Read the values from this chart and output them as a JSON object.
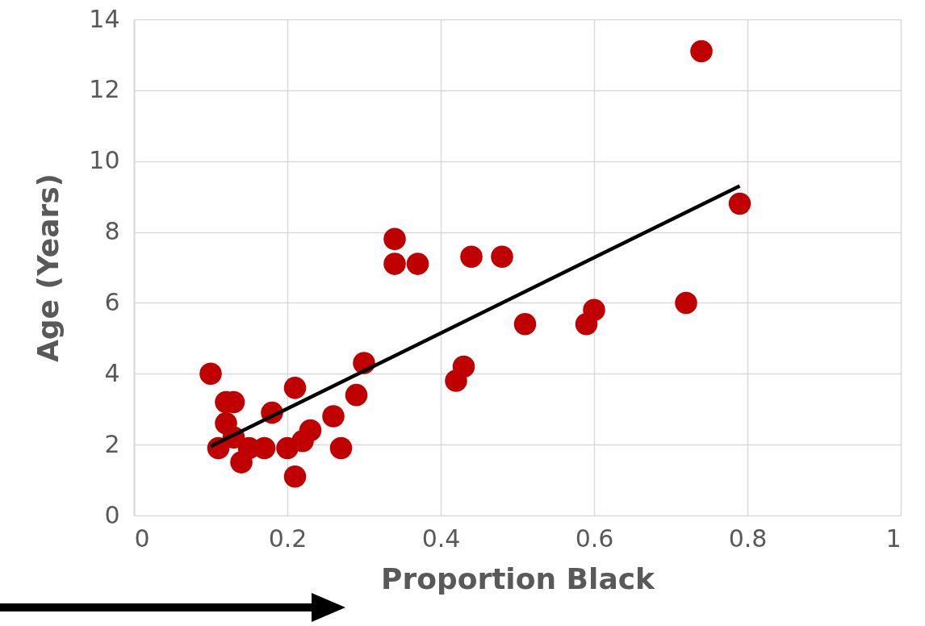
{
  "chart_data": {
    "type": "scatter",
    "xlabel": "Proportion Black",
    "ylabel": "Age (Years)",
    "xlim": [
      0,
      1
    ],
    "xticks": [
      0,
      0.2,
      0.4,
      0.6,
      0.8,
      1
    ],
    "ylim": [
      0,
      14
    ],
    "yticks": [
      0,
      2,
      4,
      6,
      8,
      10,
      12,
      14
    ],
    "grid": true,
    "series": [
      {
        "marker": "circle",
        "color": "#c00000",
        "x": [
          0.1,
          0.11,
          0.12,
          0.13,
          0.12,
          0.13,
          0.14,
          0.15,
          0.17,
          0.18,
          0.2,
          0.21,
          0.21,
          0.22,
          0.23,
          0.26,
          0.27,
          0.29,
          0.3,
          0.34,
          0.34,
          0.37,
          0.42,
          0.43,
          0.44,
          0.48,
          0.51,
          0.59,
          0.6,
          0.72,
          0.74,
          0.79
        ],
        "values": [
          4.0,
          1.9,
          3.2,
          3.2,
          2.6,
          2.2,
          1.5,
          1.9,
          1.9,
          2.9,
          1.9,
          3.6,
          1.1,
          2.1,
          2.4,
          2.8,
          1.9,
          3.4,
          4.3,
          7.8,
          7.1,
          7.1,
          3.8,
          4.2,
          7.3,
          7.3,
          5.4,
          5.4,
          5.8,
          6.0,
          13.1,
          8.8
        ]
      },
      {
        "type": "line",
        "color": "#000000",
        "x": [
          0.1,
          0.79
        ],
        "values": [
          1.95,
          9.3
        ]
      }
    ]
  }
}
